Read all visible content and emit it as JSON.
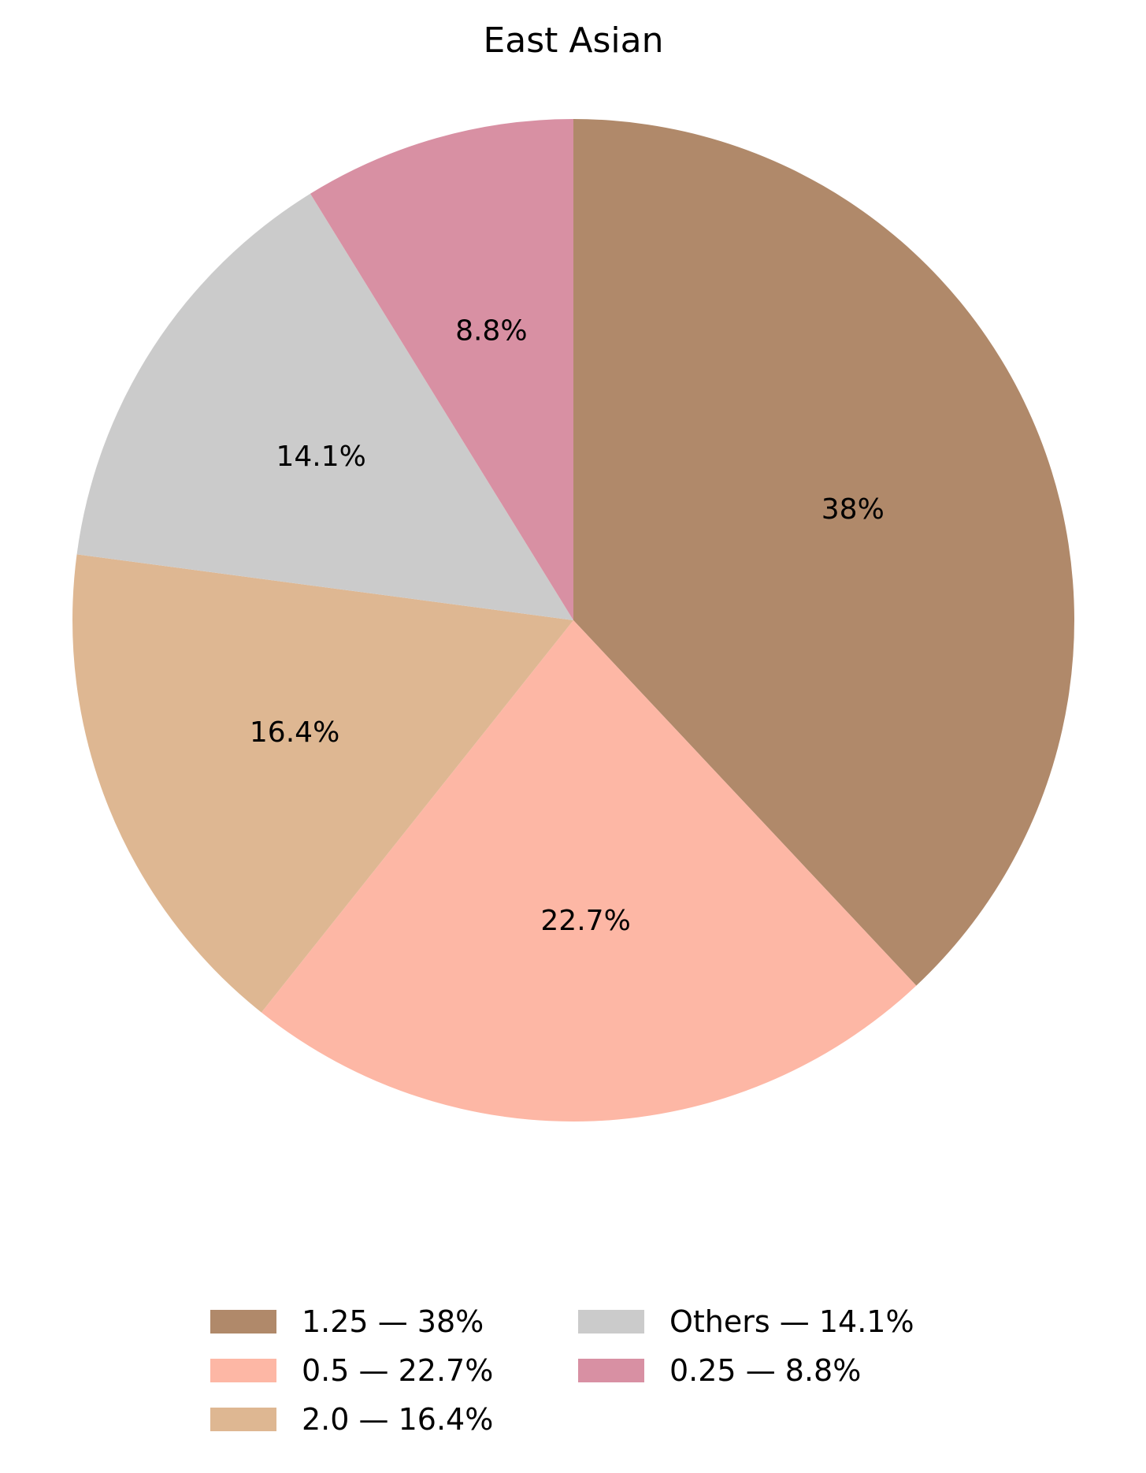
{
  "chart_data": {
    "type": "pie",
    "title": "East Asian",
    "categories": [
      "1.25",
      "0.5",
      "2.0",
      "Others",
      "0.25"
    ],
    "values": [
      38.0,
      22.7,
      16.4,
      14.1,
      8.8
    ],
    "slice_labels": [
      "38%",
      "22.7%",
      "16.4%",
      "14.1%",
      "8.8%"
    ],
    "legend_entries": [
      "1.25 — 38%",
      "0.5 — 22.7%",
      "2.0 — 16.4%",
      "Others — 14.1%",
      "0.25 — 8.8%"
    ],
    "colors": [
      "#b0896a",
      "#fdb7a5",
      "#deb792",
      "#cbcbcb",
      "#d890a3"
    ],
    "start_angle": "top (12 o'clock)",
    "direction": "clockwise",
    "legend_placement": "bottom-center"
  }
}
